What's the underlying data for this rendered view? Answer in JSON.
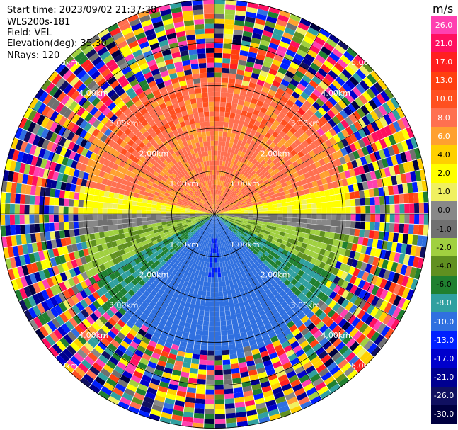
{
  "header": {
    "start_time": "Start time: 2023/09/02 21:37:38",
    "site": "WLS200s-181",
    "field": "Field: VEL",
    "elevation": "Elevation(deg): 35.30",
    "nrays": "NRays: 120"
  },
  "colorbar": {
    "unit": "m/s",
    "ticks": [
      "26.0",
      "21.0",
      "17.0",
      "13.0",
      "10.0",
      "8.0",
      "6.0",
      "4.0",
      "2.0",
      "1.0",
      "0.0",
      "-1.0",
      "-2.0",
      "-4.0",
      "-6.0",
      "-8.0",
      "-10.0",
      "-13.0",
      "-17.0",
      "-21.0",
      "-26.0",
      "-30.0"
    ],
    "colors": [
      "#ff40b0",
      "#ff1060",
      "#ff2020",
      "#ff4010",
      "#ff5020",
      "#ff7050",
      "#ffa030",
      "#ffd000",
      "#ffff00",
      "#f0f060",
      "#888888",
      "#707070",
      "#a0d040",
      "#609020",
      "#208030",
      "#30a0a0",
      "#3070e0",
      "#0020ff",
      "#0000cc",
      "#000090",
      "#101060",
      "#000040"
    ]
  },
  "chart_data": {
    "type": "heatmap",
    "subtype": "radar-ppi",
    "field": "VEL",
    "units": "m/s",
    "nrays": 120,
    "range_rings_km": [
      1.0,
      2.0,
      3.0,
      4.0,
      5.0
    ],
    "ring_labels": [
      "1.00km",
      "2.00km",
      "3.00km",
      "4.00km",
      "5.00km"
    ],
    "velocity_pattern": {
      "north": "positive 10-13 m/s",
      "east_west_band": "near zero 1-2 m/s",
      "south": "negative -8 to -10 m/s",
      "south_core": "about -13 m/s",
      "beyond_3.5km": "noise"
    }
  }
}
